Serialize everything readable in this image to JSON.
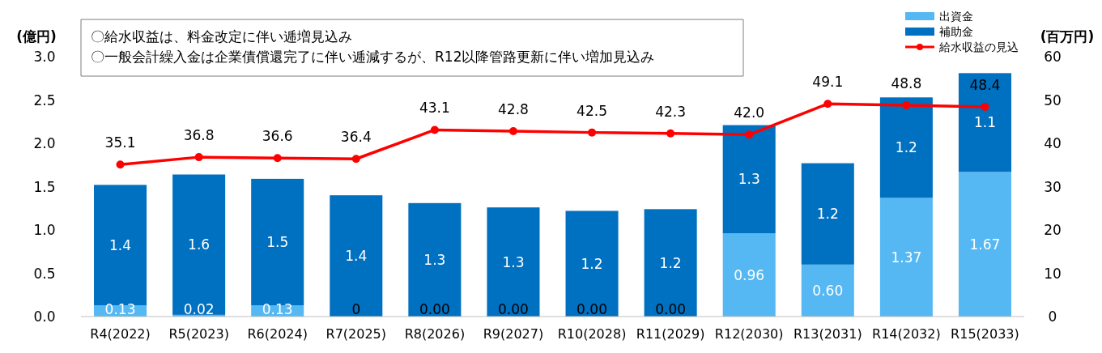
{
  "chart_data": {
    "type": "bar",
    "stacked": true,
    "categories": [
      "R4(2022)",
      "R5(2023)",
      "R6(2024)",
      "R7(2025)",
      "R8(2026)",
      "R9(2027)",
      "R10(2028)",
      "R11(2029)",
      "R12(2030)",
      "R13(2031)",
      "R14(2032)",
      "R15(2033)"
    ],
    "series": [
      {
        "name": "出資金",
        "color": "#55b8f2",
        "values": [
          0.13,
          0.02,
          0.13,
          0,
          0,
          0,
          0,
          0,
          0.96,
          0.6,
          1.37,
          1.67
        ],
        "value_labels": [
          "0.13",
          "0.02",
          "0.13",
          "0",
          "0.00",
          "0.00",
          "0.00",
          "0.00",
          "0.96",
          "0.60",
          "1.37",
          "1.67"
        ]
      },
      {
        "name": "補助金",
        "color": "#0070c0",
        "values": [
          1.39,
          1.62,
          1.46,
          1.4,
          1.31,
          1.26,
          1.22,
          1.24,
          1.25,
          1.17,
          1.16,
          1.14
        ],
        "value_labels": [
          "1.4",
          "1.6",
          "1.5",
          "1.4",
          "1.3",
          "1.3",
          "1.2",
          "1.2",
          "1.3",
          "1.2",
          "1.2",
          "1.1"
        ]
      },
      {
        "name": "給水収益の見込",
        "type": "line",
        "axis": "y2",
        "color": "#ff0000",
        "marker": "circle",
        "values": [
          35.1,
          36.8,
          36.6,
          36.4,
          43.1,
          42.8,
          42.5,
          42.3,
          42.0,
          49.1,
          48.8,
          48.4
        ],
        "value_labels": [
          "35.1",
          "36.8",
          "36.6",
          "36.4",
          "43.1",
          "42.8",
          "42.5",
          "42.3",
          "42.0",
          "49.1",
          "48.8",
          "48.4"
        ]
      }
    ],
    "ylabel": "(億円)",
    "y2label": "(百万円)",
    "ylim": [
      0,
      3
    ],
    "yticks": [
      {
        "value": 0,
        "label": "0.0"
      },
      {
        "value": 0.5,
        "label": "0.5"
      },
      {
        "value": 1,
        "label": "1.0"
      },
      {
        "value": 1.5,
        "label": "1.5"
      },
      {
        "value": 2,
        "label": "2.0"
      },
      {
        "value": 2.5,
        "label": "2.5"
      },
      {
        "value": 3,
        "label": "3.0"
      }
    ],
    "y2lim": [
      0,
      60
    ],
    "y2ticks": [
      0,
      10,
      20,
      30,
      40,
      50,
      60
    ],
    "annotations": [
      "〇給水収益は、料金改定に伴い逓増見込み",
      "〇一般会計繰入金は企業債償還完了に伴い逓減するが、R12以降管路更新に伴い増加見込み"
    ],
    "legend": "top right",
    "grid": false
  }
}
